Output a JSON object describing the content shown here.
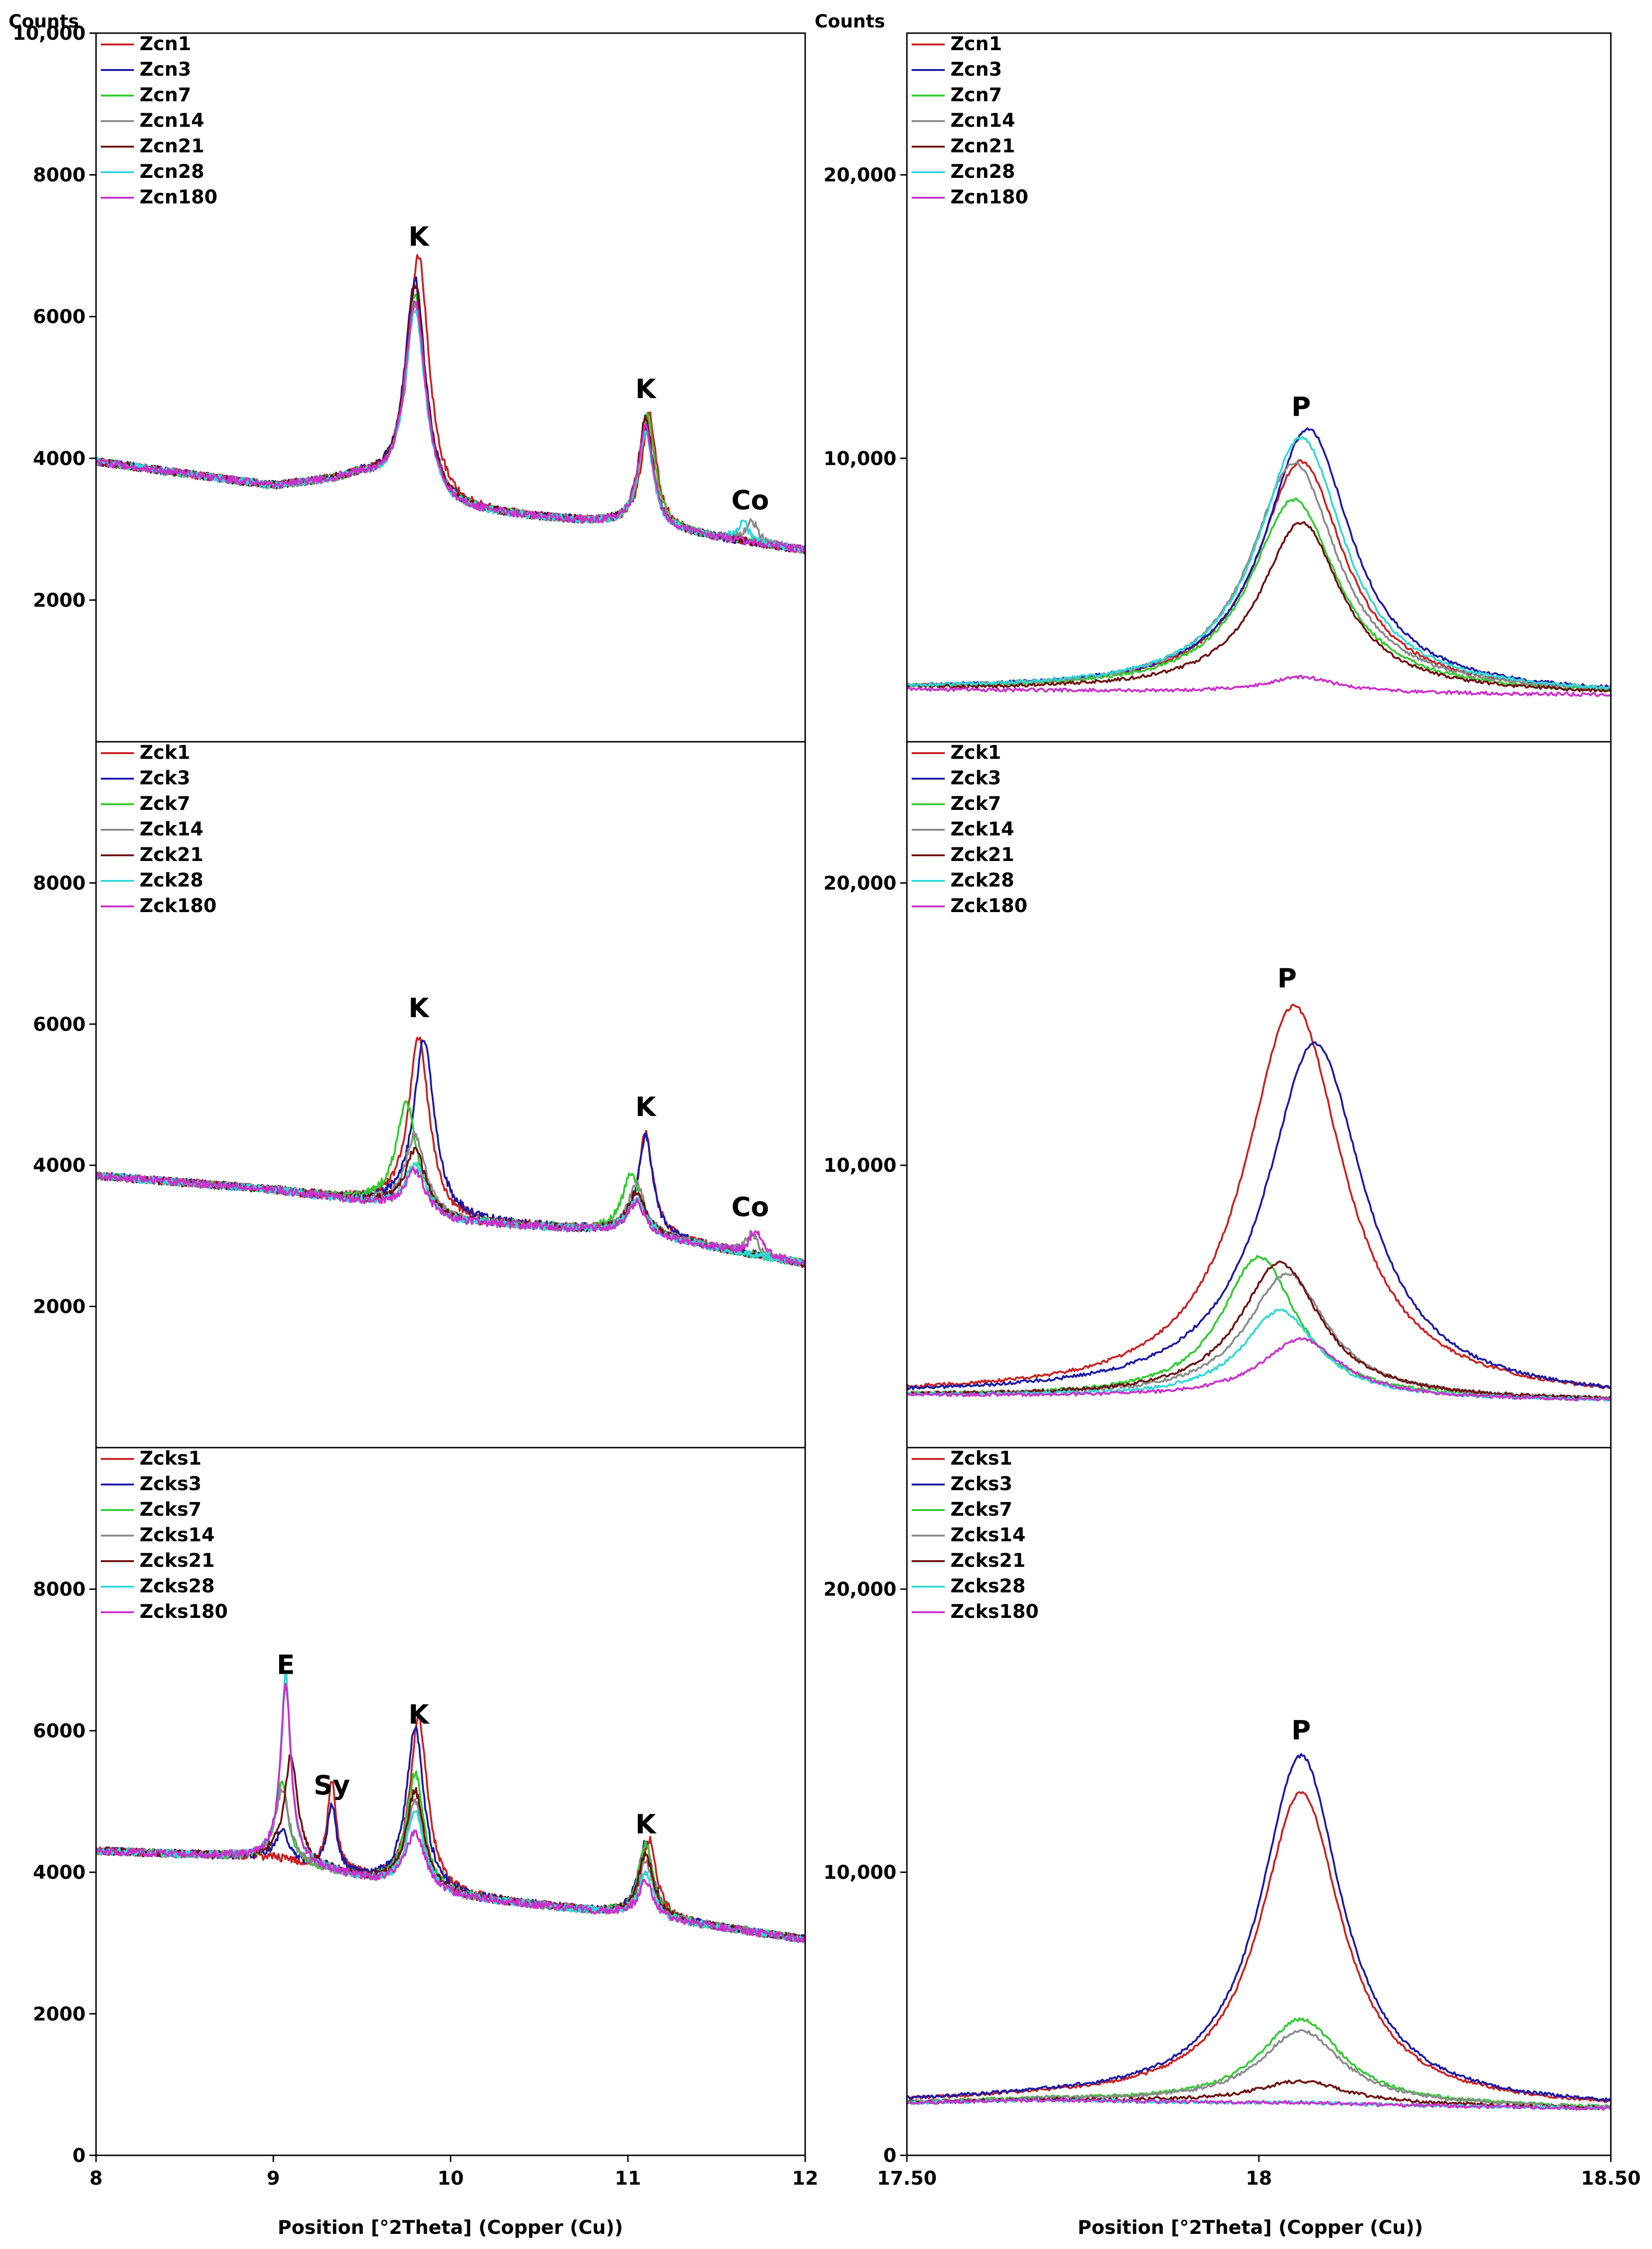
{
  "figure": {
    "counts_label": "Counts",
    "xlabel": "Position [°2Theta] (Copper (Cu))"
  },
  "colors": {
    "1": "#cc2020",
    "3": "#1a1aa8",
    "7": "#30cc30",
    "14": "#8a8a8a",
    "21": "#6e1010",
    "28": "#30d8d8",
    "180": "#cc30cc"
  },
  "chart_data": [
    {
      "id": "zcn-left",
      "type": "line",
      "group": "zcn",
      "column": "left",
      "x_range": [
        8,
        12
      ],
      "y_range": [
        0,
        10000
      ],
      "y_ticks": [
        {
          "v": 2000,
          "label": "2000"
        },
        {
          "v": 4000,
          "label": "4000"
        },
        {
          "v": 6000,
          "label": "6000"
        },
        {
          "v": 8000,
          "label": "8000"
        },
        {
          "v": 10000,
          "label": "10,000"
        }
      ],
      "x_ticks": [],
      "legend": [
        "Zcn1",
        "Zcn3",
        "Zcn7",
        "Zcn14",
        "Zcn21",
        "Zcn28",
        "Zcn180"
      ],
      "annotations": [
        {
          "text": "K",
          "x": 9.82,
          "y": 7000
        },
        {
          "text": "K",
          "x": 11.1,
          "y": 4850
        },
        {
          "text": "Co",
          "x": 11.69,
          "y": 3280
        }
      ],
      "baseline": [
        [
          8,
          3950
        ],
        [
          9,
          3600
        ],
        [
          9.5,
          3700
        ],
        [
          10,
          3250
        ],
        [
          11,
          3050
        ],
        [
          12,
          2700
        ]
      ],
      "peaks": {
        "Zcn1": [
          [
            9.82,
            3450,
            0.07
          ],
          [
            11.12,
            1600,
            0.05
          ]
        ],
        "Zcn3": [
          [
            9.8,
            3100,
            0.07
          ],
          [
            11.1,
            1400,
            0.05
          ]
        ],
        "Zcn7": [
          [
            9.8,
            2900,
            0.07
          ],
          [
            11.11,
            1580,
            0.05
          ]
        ],
        "Zcn14": [
          [
            9.8,
            2750,
            0.07
          ],
          [
            11.1,
            1500,
            0.05
          ],
          [
            11.7,
            300,
            0.04
          ]
        ],
        "Zcn21": [
          [
            9.8,
            3000,
            0.07
          ],
          [
            11.1,
            1550,
            0.05
          ]
        ],
        "Zcn28": [
          [
            9.8,
            2650,
            0.07
          ],
          [
            11.1,
            1350,
            0.05
          ],
          [
            11.65,
            250,
            0.04
          ]
        ],
        "Zcn180": [
          [
            9.8,
            2800,
            0.07
          ],
          [
            11.1,
            1450,
            0.05
          ]
        ]
      }
    },
    {
      "id": "zcn-right",
      "type": "line",
      "group": "zcn",
      "column": "right",
      "x_range": [
        17.5,
        18.5
      ],
      "y_range": [
        0,
        25000
      ],
      "y_ticks": [
        {
          "v": 10000,
          "label": "10,000"
        },
        {
          "v": 20000,
          "label": "20,000"
        }
      ],
      "x_ticks": [],
      "legend": [
        "Zcn1",
        "Zcn3",
        "Zcn7",
        "Zcn14",
        "Zcn21",
        "Zcn28",
        "Zcn180"
      ],
      "annotations": [
        {
          "text": "P",
          "x": 18.06,
          "y": 11500
        }
      ],
      "baseline": [
        [
          17.5,
          1850
        ],
        [
          18.5,
          1650
        ]
      ],
      "peaks": {
        "Zcn1": [
          [
            18.06,
            8150,
            0.075
          ]
        ],
        "Zcn3": [
          [
            18.07,
            9300,
            0.075
          ]
        ],
        "Zcn7": [
          [
            18.05,
            6800,
            0.075
          ]
        ],
        "Zcn14": [
          [
            18.05,
            8100,
            0.075
          ]
        ],
        "Zcn21": [
          [
            18.06,
            6000,
            0.07
          ]
        ],
        "Zcn28": [
          [
            18.06,
            9000,
            0.075
          ]
        ],
        "Zcn180": [
          [
            18.06,
            550,
            0.06
          ]
        ]
      }
    },
    {
      "id": "zck-left",
      "type": "line",
      "group": "zck",
      "column": "left",
      "x_range": [
        8,
        12
      ],
      "y_range": [
        0,
        10000
      ],
      "y_ticks": [
        {
          "v": 2000,
          "label": "2000"
        },
        {
          "v": 4000,
          "label": "4000"
        },
        {
          "v": 6000,
          "label": "6000"
        },
        {
          "v": 8000,
          "label": "8000"
        }
      ],
      "x_ticks": [],
      "legend": [
        "Zck1",
        "Zck3",
        "Zck7",
        "Zck14",
        "Zck21",
        "Zck28",
        "Zck180"
      ],
      "annotations": [
        {
          "text": "K",
          "x": 9.82,
          "y": 6100
        },
        {
          "text": "K",
          "x": 11.1,
          "y": 4700
        },
        {
          "text": "Co",
          "x": 11.69,
          "y": 3280
        }
      ],
      "baseline": [
        [
          8,
          3850
        ],
        [
          9,
          3650
        ],
        [
          9.6,
          3450
        ],
        [
          10,
          3200
        ],
        [
          11,
          3050
        ],
        [
          12,
          2600
        ]
      ],
      "peaks": {
        "Zck1": [
          [
            9.82,
            2500,
            0.07
          ],
          [
            11.1,
            1450,
            0.05
          ]
        ],
        "Zck3": [
          [
            9.85,
            2500,
            0.07
          ],
          [
            11.1,
            1400,
            0.05
          ]
        ],
        "Zck7": [
          [
            9.75,
            1550,
            0.07
          ],
          [
            11.02,
            850,
            0.06
          ]
        ],
        "Zck14": [
          [
            9.8,
            1100,
            0.07
          ],
          [
            11.05,
            700,
            0.06
          ],
          [
            11.7,
            300,
            0.04
          ]
        ],
        "Zck21": [
          [
            9.8,
            900,
            0.07
          ],
          [
            11.05,
            600,
            0.06
          ]
        ],
        "Zck28": [
          [
            9.8,
            700,
            0.07
          ],
          [
            11.05,
            500,
            0.06
          ]
        ],
        "Zck180": [
          [
            9.8,
            600,
            0.07
          ],
          [
            11.05,
            450,
            0.06
          ],
          [
            11.72,
            350,
            0.04
          ]
        ]
      }
    },
    {
      "id": "zck-right",
      "type": "line",
      "group": "zck",
      "column": "right",
      "x_range": [
        17.5,
        18.5
      ],
      "y_range": [
        0,
        25000
      ],
      "y_ticks": [
        {
          "v": 10000,
          "label": "10,000"
        },
        {
          "v": 20000,
          "label": "20,000"
        }
      ],
      "x_ticks": [],
      "legend": [
        "Zck1",
        "Zck3",
        "Zck7",
        "Zck14",
        "Zck21",
        "Zck28",
        "Zck180"
      ],
      "annotations": [
        {
          "text": "P",
          "x": 18.04,
          "y": 16300
        }
      ],
      "baseline": [
        [
          17.5,
          1850
        ],
        [
          18.5,
          1650
        ]
      ],
      "peaks": {
        "Zck1": [
          [
            18.05,
            13900,
            0.085
          ]
        ],
        "Zck3": [
          [
            18.08,
            12600,
            0.085
          ]
        ],
        "Zck7": [
          [
            18.0,
            5000,
            0.065
          ]
        ],
        "Zck14": [
          [
            18.04,
            4400,
            0.07
          ]
        ],
        "Zck21": [
          [
            18.03,
            4800,
            0.07
          ]
        ],
        "Zck28": [
          [
            18.03,
            3100,
            0.065
          ]
        ],
        "Zck180": [
          [
            18.06,
            2100,
            0.07
          ]
        ]
      }
    },
    {
      "id": "zcks-left",
      "type": "line",
      "group": "zcks",
      "column": "left",
      "x_range": [
        8,
        12
      ],
      "y_range": [
        0,
        10000
      ],
      "y_ticks": [
        {
          "v": 0,
          "label": "0"
        },
        {
          "v": 2000,
          "label": "2000"
        },
        {
          "v": 4000,
          "label": "4000"
        },
        {
          "v": 6000,
          "label": "6000"
        },
        {
          "v": 8000,
          "label": "8000"
        }
      ],
      "x_ticks": [
        {
          "v": 8,
          "label": "8"
        },
        {
          "v": 9,
          "label": "9"
        },
        {
          "v": 10,
          "label": "10"
        },
        {
          "v": 11,
          "label": "11"
        },
        {
          "v": 12,
          "label": "12"
        }
      ],
      "legend": [
        "Zcks1",
        "Zcks3",
        "Zcks7",
        "Zcks14",
        "Zcks21",
        "Zcks28",
        "Zcks180"
      ],
      "annotations": [
        {
          "text": "E",
          "x": 9.07,
          "y": 6800
        },
        {
          "text": "Sy",
          "x": 9.33,
          "y": 5100
        },
        {
          "text": "K",
          "x": 9.82,
          "y": 6100
        },
        {
          "text": "K",
          "x": 11.1,
          "y": 4550
        }
      ],
      "baseline": [
        [
          8,
          4300
        ],
        [
          9,
          4200
        ],
        [
          9.5,
          3900
        ],
        [
          10,
          3650
        ],
        [
          11,
          3400
        ],
        [
          12,
          3050
        ]
      ],
      "peaks": {
        "Zcks1": [
          [
            9.33,
            1250,
            0.03
          ],
          [
            9.82,
            2450,
            0.06
          ],
          [
            11.12,
            1100,
            0.05
          ]
        ],
        "Zcks3": [
          [
            9.05,
            400,
            0.04
          ],
          [
            9.33,
            950,
            0.03
          ],
          [
            9.8,
            2300,
            0.06
          ],
          [
            11.1,
            1050,
            0.05
          ]
        ],
        "Zcks7": [
          [
            9.05,
            1100,
            0.04
          ],
          [
            9.8,
            1650,
            0.06
          ],
          [
            11.1,
            1050,
            0.05
          ]
        ],
        "Zcks14": [
          [
            9.05,
            1000,
            0.045
          ],
          [
            9.8,
            1250,
            0.06
          ],
          [
            11.1,
            800,
            0.05
          ]
        ],
        "Zcks21": [
          [
            9.1,
            1500,
            0.045
          ],
          [
            9.8,
            1400,
            0.06
          ],
          [
            11.1,
            900,
            0.05
          ]
        ],
        "Zcks28": [
          [
            9.07,
            2600,
            0.035
          ],
          [
            9.8,
            1100,
            0.06
          ],
          [
            11.1,
            600,
            0.05
          ]
        ],
        "Zcks180": [
          [
            9.07,
            2500,
            0.035
          ],
          [
            9.8,
            800,
            0.07
          ],
          [
            11.1,
            500,
            0.05
          ]
        ]
      }
    },
    {
      "id": "zcks-right",
      "type": "line",
      "group": "zcks",
      "column": "right",
      "x_range": [
        17.5,
        18.5
      ],
      "y_range": [
        0,
        25000
      ],
      "y_ticks": [
        {
          "v": 0,
          "label": "0"
        },
        {
          "v": 10000,
          "label": "10,000"
        },
        {
          "v": 20000,
          "label": "20,000"
        }
      ],
      "x_ticks": [
        {
          "v": 17.5,
          "label": "17.50"
        },
        {
          "v": 18,
          "label": "18"
        },
        {
          "v": 18.5,
          "label": "18.50"
        }
      ],
      "legend": [
        "Zcks1",
        "Zcks3",
        "Zcks7",
        "Zcks14",
        "Zcks21",
        "Zcks28",
        "Zcks180"
      ],
      "annotations": [
        {
          "text": "P",
          "x": 18.06,
          "y": 14700
        }
      ],
      "baseline": [
        [
          17.5,
          1850
        ],
        [
          17.7,
          1950
        ],
        [
          18.5,
          1650
        ]
      ],
      "peaks": {
        "Zcks1": [
          [
            18.06,
            11000,
            0.07
          ]
        ],
        "Zcks3": [
          [
            18.06,
            12300,
            0.07
          ]
        ],
        "Zcks7": [
          [
            18.06,
            3000,
            0.07
          ]
        ],
        "Zcks14": [
          [
            18.06,
            2600,
            0.07
          ]
        ],
        "Zcks21": [
          [
            18.06,
            800,
            0.08
          ]
        ],
        "Zcks28": [
          [
            18.06,
            50,
            0.08
          ]
        ],
        "Zcks180": [
          [
            18.06,
            50,
            0.08
          ]
        ]
      }
    }
  ]
}
